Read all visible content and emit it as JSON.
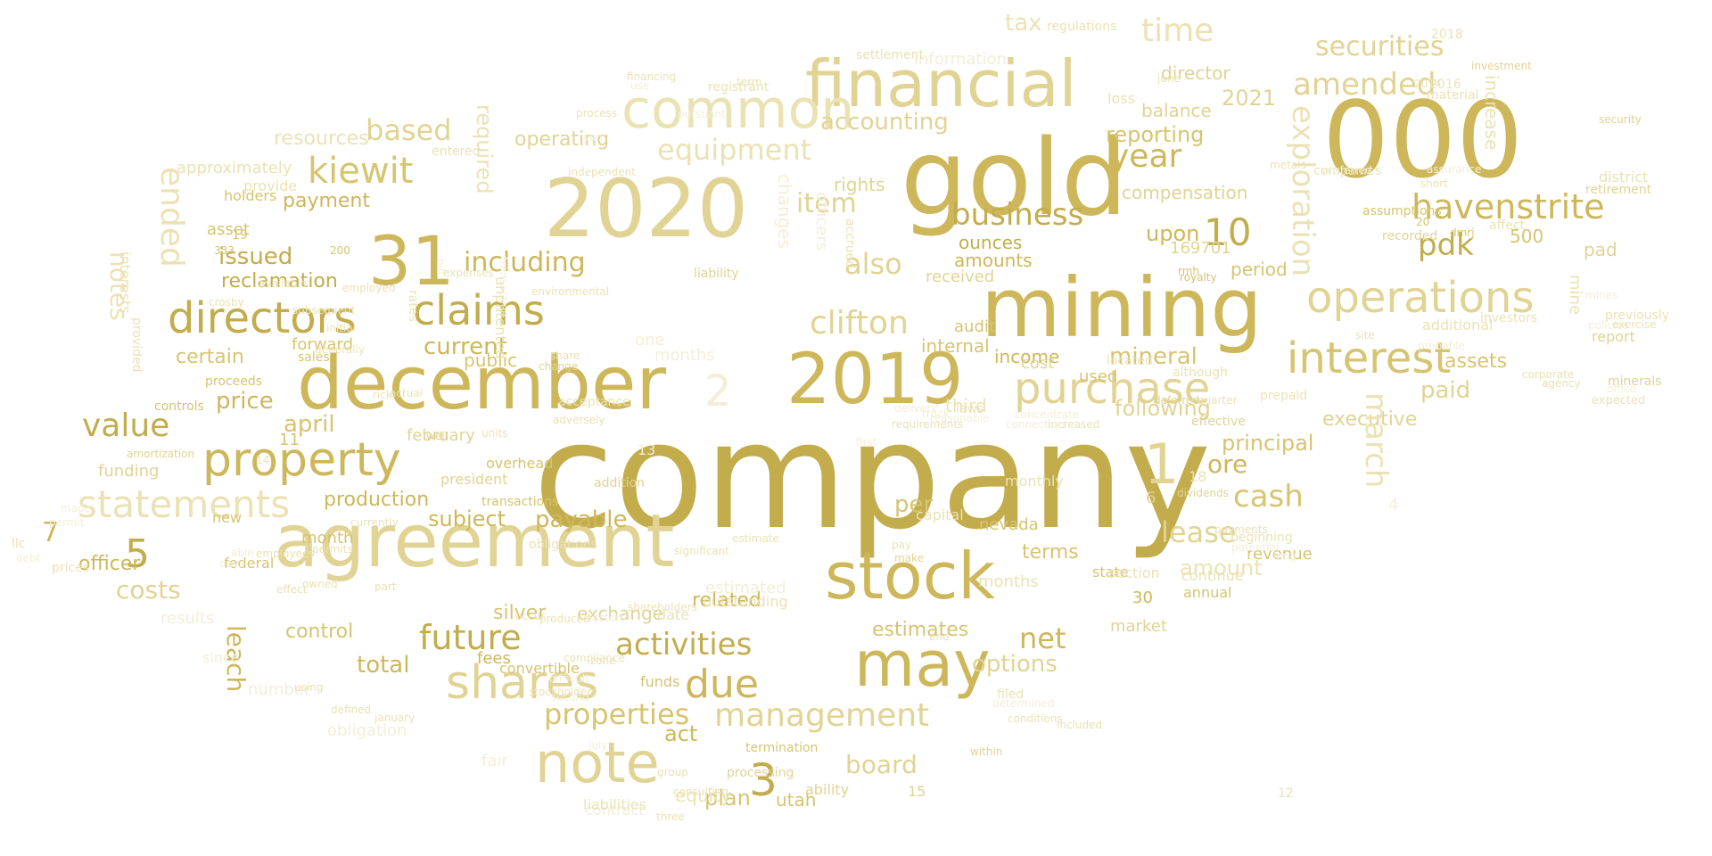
{
  "colors": {
    "background": "#ffffff",
    "palette": [
      "#c2ac4c",
      "#cdb75a",
      "#d6c470",
      "#e1d393",
      "#ebe2b4",
      "#f3eed8"
    ]
  },
  "words": [
    "company",
    "gold",
    "mining",
    "2020",
    "000",
    "december",
    "agreement",
    "financial",
    "stock",
    "may",
    "2019",
    "note",
    "common",
    "31",
    "property",
    "directors",
    "operations",
    "interest",
    "shares",
    "purchase",
    "claims",
    "statements",
    "due",
    "activities",
    "clifton",
    "business",
    "kiewit",
    "havenstrite",
    "securities",
    "pdk",
    "management",
    "properties",
    "value",
    "future",
    "amended",
    "time",
    "10",
    "year",
    "cash",
    "equipment",
    "including",
    "also",
    "1",
    "3",
    "2",
    "5",
    "7",
    "net",
    "lease",
    "costs",
    "current",
    "accounting",
    "production",
    "payable",
    "reclamation",
    "issued",
    "price",
    "april",
    "ore",
    "mineral",
    "tax",
    "reporting",
    "board",
    "per",
    "options",
    "following",
    "principal",
    "amount",
    "operating",
    "resources",
    "based",
    "item",
    "required",
    "ended",
    "notes",
    "leach",
    "certain",
    "total",
    "silver",
    "exchange",
    "related",
    "estimates",
    "terms",
    "subject",
    "control",
    "plan",
    "act",
    "utah",
    "fees",
    "convertible",
    "funds",
    "executive",
    "assets",
    "paid",
    "march",
    "exploration",
    "upon",
    "payment",
    "director",
    "officer",
    "2021",
    "information",
    "income",
    "internal",
    "received",
    "ounces",
    "amounts",
    "rights",
    "period",
    "compensation",
    "balance",
    "months",
    "results",
    "federal",
    "state",
    "market",
    "annual",
    "third",
    "audit",
    "cost",
    "used",
    "nevada",
    "revenue",
    "months",
    "fair",
    "equity",
    "ability",
    "processing",
    "termination",
    "month",
    "public",
    "february",
    "overhead",
    "president",
    "transactions",
    "funding",
    "approximately",
    "provide",
    "holders",
    "asset",
    "forward",
    "sales",
    "proceeds",
    "controls",
    "amortization",
    "interests",
    "provided",
    "new",
    "addition",
    "obligations",
    "mine",
    "mines",
    "district",
    "retirement",
    "additional",
    "report",
    "minerals",
    "expected",
    "pad",
    "500",
    "assumptions",
    "recorded",
    "20",
    "dmrj",
    "security",
    "dividends",
    "royalty",
    "rmh",
    "deferred",
    "quarter",
    "prepaid",
    "effective",
    "continue",
    "section",
    "30",
    "6",
    "4",
    "11",
    "12",
    "13",
    "14",
    "15",
    "18",
    "19",
    "200",
    "333",
    "169701",
    "2018",
    "2016",
    "2014",
    "obligation",
    "number",
    "since",
    "llc",
    "prices",
    "contract",
    "liabilities",
    "one",
    "date",
    "estimated",
    "outstanding",
    "capital",
    "monthly",
    "pay",
    "make",
    "within",
    "increased",
    "requirements",
    "first",
    "changes",
    "officers",
    "accrued",
    "liability",
    "environmental",
    "transaction",
    "unpatented",
    "hill",
    "rates",
    "expenses",
    "entered",
    "settlement",
    "registrant",
    "regulations",
    "term",
    "loss",
    "june",
    "located",
    "connection",
    "concentrate",
    "laws",
    "truck",
    "reasonable",
    "delivery",
    "although",
    "beginning",
    "payments",
    "potential",
    "long",
    "agency",
    "office",
    "corporate",
    "investment",
    "increase",
    "material",
    "companies",
    "preferred",
    "metals",
    "assurance",
    "short",
    "affect",
    "investors",
    "site",
    "probable",
    "previously",
    "policies",
    "exercise",
    "acceptance",
    "adversely",
    "rick",
    "well",
    "employed",
    "subsequent",
    "initial",
    "generally",
    "crosby",
    "available",
    "actual",
    "change",
    "share",
    "independent",
    "ryan",
    "pursuant",
    "financing",
    "use",
    "process",
    "consulting",
    "group",
    "three",
    "july",
    "difficult",
    "second",
    "zone",
    "stockholders",
    "compliance",
    "end",
    "conditions",
    "included",
    "january",
    "defined",
    "using",
    "filed",
    "determined",
    "occur",
    "produced",
    "factors",
    "shareholders",
    "significant",
    "estimate",
    "days",
    "able",
    "made",
    "permit",
    "debt",
    "employees",
    "currently",
    "permits",
    "owned",
    "effect",
    "part",
    "units",
    "materially",
    "percentage",
    "bonds",
    "thereafter",
    "valuation",
    "primarily",
    "associated",
    "limited",
    "mineralized",
    "default"
  ]
}
